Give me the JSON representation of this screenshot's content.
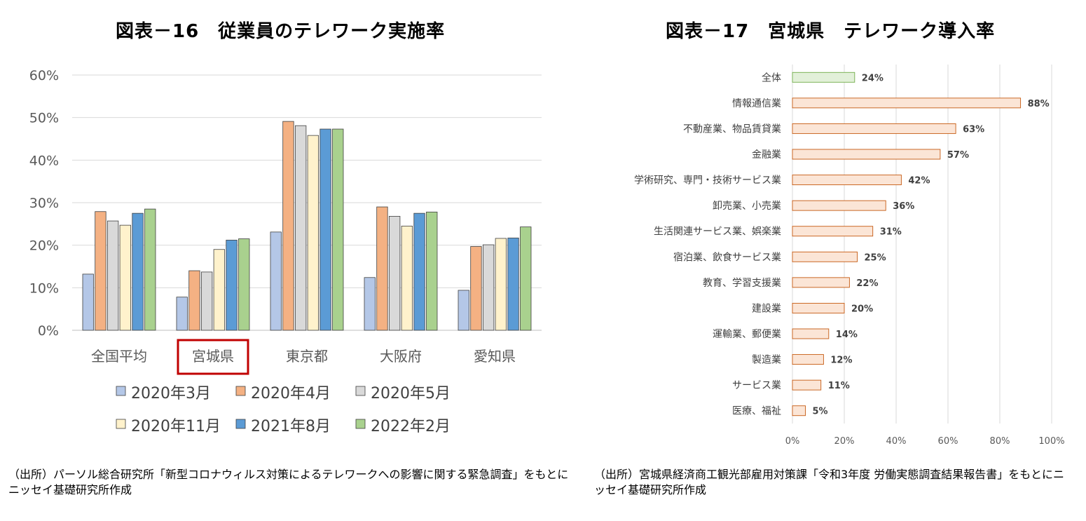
{
  "left_title": "図表－16　従業員のテレワーク実施率",
  "right_title": "図表－17　宮城県　テレワーク導入率",
  "left_source": "（出所）パーソル総合研究所「新型コロナウィルス対策によるテレワークへの影響に関する緊急調査」をもとにニッセイ基礎研究所作成",
  "right_source": "（出所）宮城県経済商工観光部雇用対策課「令和3年度 労働実態調査結果報告書」をもとにニッセイ基礎研究所作成",
  "highlight_color": "#c00000",
  "chart_data": [
    {
      "type": "bar",
      "categories": [
        "全国平均",
        "宮城県",
        "東京都",
        "大阪府",
        "愛知県"
      ],
      "highlighted_category": "宮城県",
      "series": [
        {
          "name": "2020年3月",
          "color": "#b4c7e7",
          "values": [
            13.2,
            7.8,
            23.1,
            12.4,
            9.4
          ]
        },
        {
          "name": "2020年4月",
          "color": "#f4b183",
          "values": [
            27.9,
            14.0,
            49.1,
            29.0,
            19.7
          ]
        },
        {
          "name": "2020年5月",
          "color": "#d9d9d9",
          "values": [
            25.7,
            13.7,
            48.1,
            26.8,
            20.1
          ]
        },
        {
          "name": "2020年11月",
          "color": "#fff2cc",
          "values": [
            24.7,
            19.0,
            45.8,
            24.5,
            21.6
          ]
        },
        {
          "name": "2021年8月",
          "color": "#5b9bd5",
          "values": [
            27.5,
            21.2,
            47.3,
            27.5,
            21.7
          ]
        },
        {
          "name": "2022年2月",
          "color": "#a9d18e",
          "values": [
            28.5,
            21.5,
            47.3,
            27.8,
            24.3
          ]
        }
      ],
      "ylim": [
        0,
        60
      ],
      "yticks": [
        "0%",
        "10%",
        "20%",
        "30%",
        "40%",
        "50%",
        "60%"
      ],
      "grid": true,
      "legend": "bottom"
    },
    {
      "type": "bar",
      "orientation": "horizontal",
      "categories": [
        "全体",
        "情報通信業",
        "不動産業、物品賃貸業",
        "金融業",
        "学術研究、専門・技術サービス業",
        "卸売業、小売業",
        "生活関連サービス業、娯楽業",
        "宿泊業、飲食サービス業",
        "教育、学習支援業",
        "建設業",
        "運輸業、郵便業",
        "製造業",
        "サービス業",
        "医療、福祉"
      ],
      "values": [
        24,
        88,
        63,
        57,
        42,
        36,
        31,
        25,
        22,
        20,
        14,
        12,
        11,
        5
      ],
      "value_labels": [
        "24%",
        "88%",
        "63%",
        "57%",
        "42%",
        "36%",
        "31%",
        "25%",
        "22%",
        "20%",
        "14%",
        "12%",
        "11%",
        "5%"
      ],
      "bar_colors": {
        "total": "#e2f0d9",
        "total_edge": "#70ad47",
        "industry": "#fbe5d6",
        "industry_edge": "#c55a11"
      },
      "xlim": [
        0,
        100
      ],
      "xticks": [
        "0%",
        "20%",
        "40%",
        "60%",
        "80%",
        "100%"
      ],
      "grid": true
    }
  ]
}
